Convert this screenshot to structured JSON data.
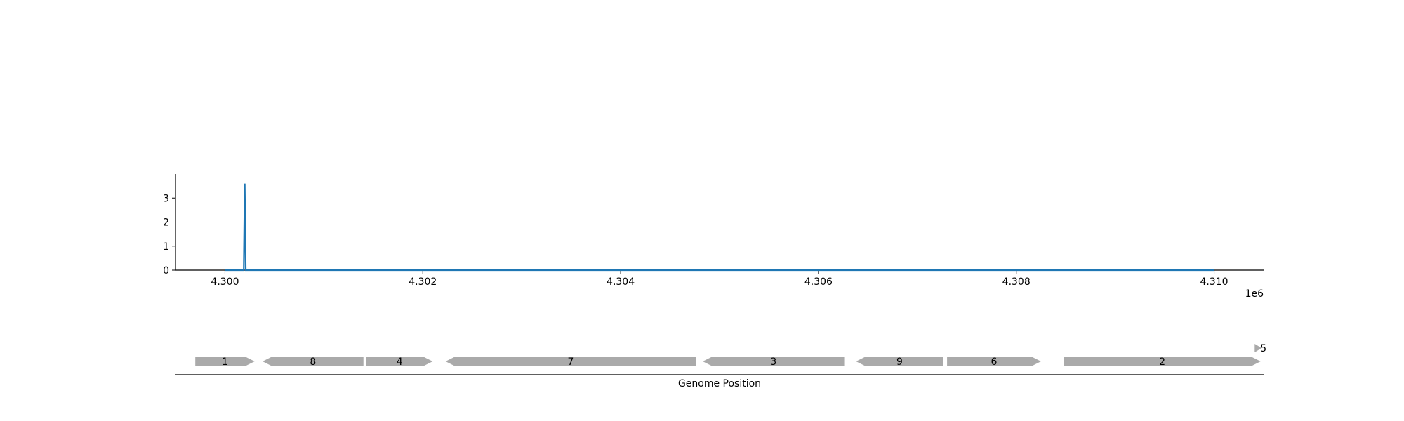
{
  "chart_data": [
    {
      "type": "line",
      "title": "",
      "xlabel": "",
      "ylabel": "",
      "x_offset_label": "1e6",
      "xlim": [
        4299500,
        4310500
      ],
      "ylim": [
        0,
        4
      ],
      "xticks": [
        4300000,
        4302000,
        4304000,
        4306000,
        4308000,
        4310000
      ],
      "xtick_labels": [
        "4.300",
        "4.302",
        "4.304",
        "4.306",
        "4.308",
        "4.310"
      ],
      "yticks": [
        0,
        1,
        2,
        3
      ],
      "ytick_labels": [
        "0",
        "1",
        "2",
        "3"
      ],
      "grid": false,
      "color": "#1f77b4",
      "series": [
        {
          "x": [
            4300000,
            4300190,
            4300200,
            4300210,
            4310000
          ],
          "y": [
            0,
            0,
            3.6,
            0,
            0
          ]
        }
      ]
    },
    {
      "type": "gene-track",
      "xlabel": "Genome Position",
      "xlim": [
        4299500,
        4310500
      ],
      "color": "#aaaaaa",
      "genes": [
        {
          "label": "1",
          "start": 4299700,
          "end": 4300300,
          "strand": "+"
        },
        {
          "label": "8",
          "start": 4300380,
          "end": 4301400,
          "strand": "-"
        },
        {
          "label": "4",
          "start": 4301430,
          "end": 4302100,
          "strand": "+"
        },
        {
          "label": "7",
          "start": 4302230,
          "end": 4304760,
          "strand": "-"
        },
        {
          "label": "3",
          "start": 4304830,
          "end": 4306260,
          "strand": "-"
        },
        {
          "label": "9",
          "start": 4306380,
          "end": 4307260,
          "strand": "-"
        },
        {
          "label": "6",
          "start": 4307300,
          "end": 4308250,
          "strand": "+"
        },
        {
          "label": "2",
          "start": 4308480,
          "end": 4310470,
          "strand": "+"
        },
        {
          "label": "5",
          "start": 4310410,
          "end": 4310480,
          "strand": "+",
          "row": 1
        }
      ]
    }
  ]
}
